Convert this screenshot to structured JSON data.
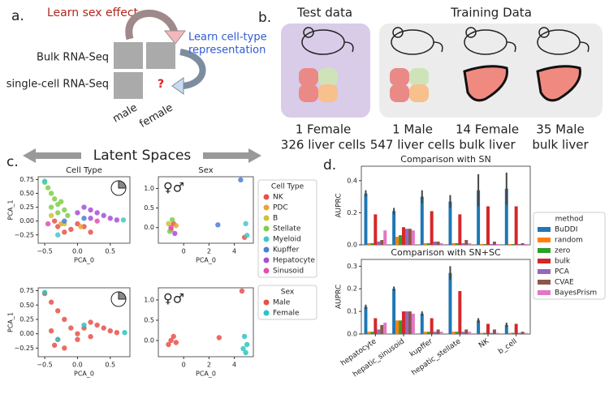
{
  "panel_a": {
    "label": "a.",
    "learn_sex": "Learn sex effect",
    "learn_cell": [
      "Learn cell-type",
      "representation"
    ],
    "bulk": "Bulk RNA-Seq",
    "single_cell": "single-cell RNA-Seq",
    "unknown": "?",
    "male": "male",
    "female": "female"
  },
  "panel_b": {
    "label": "b.",
    "test_title": "Test data",
    "train_title": "Training Data",
    "captions": [
      [
        "1 Female",
        "326 liver cells"
      ],
      [
        "1 Male",
        "547 liver cells"
      ],
      [
        "14 Female",
        "bulk liver"
      ],
      [
        "35 Male",
        "bulk liver"
      ]
    ]
  },
  "panel_c": {
    "label": "c.",
    "heading": "Latent Spaces"
  },
  "panel_d": {
    "label": "d."
  },
  "chart_data": [
    {
      "type": "scatter",
      "title": "Cell Type",
      "xlabel": "PCA_0",
      "ylabel": "PCA_1",
      "xlim": [
        -0.6,
        0.8
      ],
      "ylim": [
        -0.4,
        0.8
      ],
      "xticks": [
        {
          "value": -0.5,
          "label": "−0.5"
        },
        {
          "value": 0,
          "label": "0.0"
        },
        {
          "value": 0.5,
          "label": "0.5"
        }
      ],
      "yticks": [
        {
          "value": -0.25,
          "label": "−0.25"
        },
        {
          "value": 0,
          "label": "0.00"
        },
        {
          "value": 0.25,
          "label": "0.25"
        },
        {
          "value": 0.5,
          "label": "0.50"
        },
        {
          "value": 0.75,
          "label": "0.75"
        }
      ],
      "series": [
        {
          "color": "#7fce4a",
          "x": [
            -0.5,
            -0.45,
            -0.4,
            -0.35,
            -0.3,
            -0.25,
            -0.2,
            -0.3,
            -0.4,
            -0.15
          ],
          "y": [
            0.7,
            0.6,
            0.5,
            0.4,
            0.3,
            0.35,
            0.2,
            0.15,
            0.25,
            0.1
          ]
        },
        {
          "color": "#a64fd6",
          "x": [
            0.1,
            0.2,
            0.3,
            0.4,
            0.5,
            0.6,
            0.0,
            0.2
          ],
          "y": [
            0.25,
            0.2,
            0.15,
            0.1,
            0.05,
            0.02,
            0.15,
            0.05
          ]
        },
        {
          "color": "#e8514a",
          "x": [
            -0.3,
            -0.2,
            -0.1,
            0,
            0.1,
            -0.35,
            0.2
          ],
          "y": [
            -0.1,
            -0.2,
            -0.15,
            -0.05,
            -0.1,
            0,
            -0.2
          ]
        },
        {
          "color": "#e8a33b",
          "x": [
            -0.25,
            0.05
          ],
          "y": [
            -0.05,
            -0.1
          ]
        },
        {
          "color": "#c9c23a",
          "x": [
            -0.4,
            -0.2
          ],
          "y": [
            0.1,
            -0.05
          ]
        },
        {
          "color": "#3ec9c9",
          "x": [
            -0.5,
            0.7,
            -0.3
          ],
          "y": [
            0.72,
            0.02,
            -0.25
          ]
        },
        {
          "color": "#4a7fd6",
          "x": [
            -0.2,
            0.1
          ],
          "y": [
            0,
            0.05
          ]
        },
        {
          "color": "#e24fb0",
          "x": [
            -0.45,
            0.3
          ],
          "y": [
            -0.05,
            0.0
          ]
        }
      ]
    },
    {
      "type": "scatter",
      "title": "Sex",
      "annotation": "♀♂",
      "xlim": [
        -2,
        5.5
      ],
      "ylim": [
        -0.4,
        1.3
      ],
      "xlabel": "PCA_0",
      "xticks": [
        0,
        2,
        4
      ],
      "yticks": [
        {
          "value": 0,
          "label": "0.0"
        },
        {
          "value": 0.5,
          "label": "0.5"
        },
        {
          "value": 1,
          "label": "1.0"
        }
      ],
      "legend_title": "Cell Type",
      "series": [
        {
          "name": "NK",
          "color": "#e8514a",
          "x": [
            -1,
            -0.8,
            4.8
          ],
          "y": [
            -0.05,
            0.1,
            -0.25
          ]
        },
        {
          "name": "PDC",
          "color": "#e8a33b",
          "x": [
            -0.6
          ],
          "y": [
            0.05
          ]
        },
        {
          "name": "B",
          "color": "#c9c23a",
          "x": [
            -1.2
          ],
          "y": [
            0.1
          ]
        },
        {
          "name": "Stellate",
          "color": "#7fce4a",
          "x": [
            -0.9,
            -1.1
          ],
          "y": [
            0.2,
            -0.1
          ]
        },
        {
          "name": "Myeloid",
          "color": "#3ec9c9",
          "x": [
            4.9,
            5.0
          ],
          "y": [
            0.1,
            -0.2
          ]
        },
        {
          "name": "Kupffer",
          "color": "#4a7fd6",
          "x": [
            2.7,
            4.5
          ],
          "y": [
            0.07,
            1.22
          ]
        },
        {
          "name": "Hepatocyte",
          "color": "#a64fd6",
          "x": [
            -0.7
          ],
          "y": [
            -0.15
          ]
        },
        {
          "name": "Sinusoid",
          "color": "#e24fb0",
          "x": [
            -1.0
          ],
          "y": [
            0.0
          ]
        }
      ]
    },
    {
      "type": "scatter",
      "xlabel": "PCA_0",
      "ylabel": "PCA_1",
      "xlim": [
        -0.6,
        0.8
      ],
      "ylim": [
        -0.4,
        0.8
      ],
      "xticks": [
        {
          "value": -0.5,
          "label": "−0.5"
        },
        {
          "value": 0,
          "label": "0.0"
        },
        {
          "value": 0.5,
          "label": "0.5"
        }
      ],
      "yticks": [
        {
          "value": -0.25,
          "label": "−0.25"
        },
        {
          "value": 0,
          "label": "0.00"
        },
        {
          "value": 0.25,
          "label": "0.25"
        },
        {
          "value": 0.5,
          "label": "0.50"
        },
        {
          "value": 0.75,
          "label": "0.75"
        }
      ],
      "series": [
        {
          "color": "#e8514a",
          "x": [
            -0.5,
            -0.4,
            -0.3,
            -0.2,
            -0.1,
            0,
            0.1,
            0.2,
            0.3,
            0.4,
            0.5,
            0.6,
            -0.3,
            -0.2,
            0,
            0.2,
            -0.4,
            -0.35
          ],
          "y": [
            0.7,
            0.55,
            0.4,
            0.25,
            0.1,
            0,
            0.1,
            0.2,
            0.15,
            0.1,
            0.05,
            0.02,
            -0.1,
            -0.25,
            -0.1,
            -0.05,
            0.05,
            -0.2
          ]
        },
        {
          "color": "#2ec4c4",
          "x": [
            -0.5,
            0.72,
            0.1,
            -0.3
          ],
          "y": [
            0.72,
            0.02,
            0.15,
            -0.1
          ]
        }
      ]
    },
    {
      "type": "scatter",
      "annotation": "♀♂",
      "xlabel": "PCA_0",
      "xlim": [
        -2,
        5.5
      ],
      "ylim": [
        -0.4,
        1.3
      ],
      "xticks": [
        0,
        2,
        4
      ],
      "yticks": [
        {
          "value": 0,
          "label": "0.0"
        },
        {
          "value": 0.5,
          "label": "0.5"
        },
        {
          "value": 1,
          "label": "1.0"
        }
      ],
      "legend_title": "Sex",
      "series": [
        {
          "name": "Male",
          "color": "#e8514a",
          "x": [
            -1,
            -0.8,
            -0.6,
            -1.2,
            2.8,
            4.6
          ],
          "y": [
            0,
            0.1,
            -0.05,
            -0.1,
            0.07,
            1.22
          ]
        },
        {
          "name": "Female",
          "color": "#2ec4c4",
          "x": [
            4.7,
            4.9,
            5.0,
            4.8
          ],
          "y": [
            -0.2,
            -0.3,
            -0.1,
            0.1
          ]
        }
      ]
    },
    {
      "type": "bar",
      "title": "Comparison with SN",
      "ylabel": "AUPRC",
      "ylim": [
        0,
        0.49
      ],
      "yticks": [
        {
          "value": 0,
          "label": "0.0"
        },
        {
          "value": 0.2,
          "label": "0.2"
        },
        {
          "value": 0.4,
          "label": "0.4"
        }
      ],
      "legend_title": "method",
      "series": [
        {
          "name": "BuDDI",
          "color": "#1f77b4",
          "values": [
            0.32,
            0.21,
            0.3,
            0.27,
            0.34,
            0.35
          ],
          "errors": [
            0.02,
            0.02,
            0.04,
            0.04,
            0.1,
            0.1
          ]
        },
        {
          "name": "random",
          "color": "#ff7f0e",
          "values": [
            0.01,
            0.05,
            0.01,
            0.01,
            0.005,
            0.005
          ]
        },
        {
          "name": "zero",
          "color": "#2ca02c",
          "values": [
            0.01,
            0.06,
            0.01,
            0.01,
            0.005,
            0.005
          ]
        },
        {
          "name": "bulk",
          "color": "#d62728",
          "values": [
            0.19,
            0.11,
            0.21,
            0.19,
            0.24,
            0.24
          ]
        },
        {
          "name": "PCA",
          "color": "#9467bd",
          "values": [
            0.02,
            0.1,
            0.02,
            0.01,
            0.005,
            0.005
          ]
        },
        {
          "name": "CVAE",
          "color": "#8c564b",
          "values": [
            0.03,
            0.1,
            0.02,
            0.03,
            0.02,
            0.01
          ]
        },
        {
          "name": "BayesPrism",
          "color": "#e377c2",
          "values": [
            0.09,
            0.09,
            0.01,
            0.01,
            0.005,
            0.005
          ]
        }
      ]
    },
    {
      "type": "bar",
      "title": "Comparison with SN+SC",
      "ylabel": "AUPRC",
      "ylim": [
        0,
        0.33
      ],
      "categories": [
        "hepatocyte",
        "hepatic_sinusoid",
        "kupffer",
        "hepatic_stellate",
        "NK",
        "b_cell"
      ],
      "yticks": [
        {
          "value": 0,
          "label": "0.0"
        },
        {
          "value": 0.1,
          "label": "0.1"
        },
        {
          "value": 0.2,
          "label": "0.2"
        },
        {
          "value": 0.3,
          "label": "0.3"
        }
      ],
      "series": [
        {
          "color": "#1f77b4",
          "values": [
            0.12,
            0.2,
            0.09,
            0.27,
            0.06,
            0.04
          ],
          "errors": [
            0.01,
            0.01,
            0.01,
            0.03,
            0.01,
            0.01
          ]
        },
        {
          "color": "#ff7f0e",
          "values": [
            0.01,
            0.06,
            0.01,
            0.01,
            0.005,
            0.005
          ]
        },
        {
          "color": "#2ca02c",
          "values": [
            0.01,
            0.06,
            0.01,
            0.01,
            0.005,
            0.005
          ]
        },
        {
          "color": "#d62728",
          "values": [
            0.07,
            0.1,
            0.07,
            0.19,
            0.045,
            0.045
          ]
        },
        {
          "color": "#9467bd",
          "values": [
            0.02,
            0.1,
            0.01,
            0.01,
            0.005,
            0.005
          ]
        },
        {
          "color": "#8c564b",
          "values": [
            0.04,
            0.1,
            0.02,
            0.02,
            0.02,
            0.01
          ]
        },
        {
          "color": "#e377c2",
          "values": [
            0.05,
            0.09,
            0.01,
            0.01,
            0.005,
            0.005
          ]
        }
      ]
    }
  ]
}
